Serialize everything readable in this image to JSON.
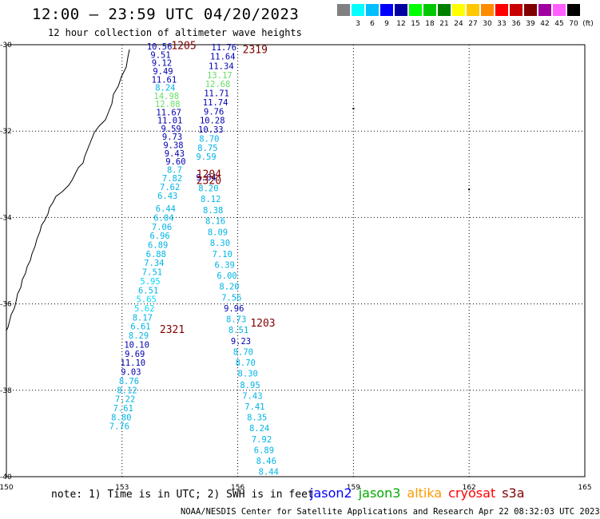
{
  "header": {
    "title": "12:00 – 23:59 UTC 04/20/2023",
    "subtitle": "12 hour collection of altimeter wave heights"
  },
  "legend": {
    "unit": "(ft)",
    "bins": [
      {
        "label": "",
        "color": "#808080"
      },
      {
        "label": "3",
        "color": "#00ffff"
      },
      {
        "label": "6",
        "color": "#00bfff"
      },
      {
        "label": "9",
        "color": "#0000ff"
      },
      {
        "label": "12",
        "color": "#0000a0"
      },
      {
        "label": "15",
        "color": "#00ff00"
      },
      {
        "label": "18",
        "color": "#00c800"
      },
      {
        "label": "21",
        "color": "#008000"
      },
      {
        "label": "24",
        "color": "#ffff00"
      },
      {
        "label": "27",
        "color": "#ffc800"
      },
      {
        "label": "30",
        "color": "#ff8c00"
      },
      {
        "label": "33",
        "color": "#ff0000"
      },
      {
        "label": "36",
        "color": "#c80000"
      },
      {
        "label": "39",
        "color": "#800000"
      },
      {
        "label": "42",
        "color": "#a000a0"
      },
      {
        "label": "45",
        "color": "#ff60ff"
      },
      {
        "label": "70",
        "color": "#000000"
      }
    ]
  },
  "footer": {
    "note": "note: 1) Time is in UTC; 2) SWH is in feet",
    "credit": "NOAA/NESDIS Center for Satellite Applications and Research   Apr 22 08:32:03 UTC 2023",
    "missions": [
      {
        "name": "jason2",
        "color": "#0000ff"
      },
      {
        "name": "jason3",
        "color": "#00aa00"
      },
      {
        "name": "altika",
        "color": "#ff9900"
      },
      {
        "name": "cryosat",
        "color": "#ff0000"
      },
      {
        "name": "s3a",
        "color": "#800000"
      }
    ]
  },
  "chart_data": {
    "type": "scatter",
    "title": "12:00 – 23:59 UTC 04/20/2023",
    "subtitle": "12 hour collection of altimeter wave heights",
    "xlim": [
      150,
      165
    ],
    "ylim": [
      -40,
      -30
    ],
    "x_ticks": [
      "150",
      "153",
      "156",
      "159",
      "162",
      "165"
    ],
    "y_ticks": [
      "-30",
      "-32",
      "-34",
      "-36",
      "-38",
      "-40"
    ],
    "tick_values": {
      "x": [
        150,
        153,
        156,
        159,
        162,
        165
      ],
      "y": [
        -30,
        -32,
        -34,
        -36,
        -38,
        -40
      ]
    },
    "grid": true,
    "colors": {
      "light_blue": "#00b4e6",
      "dark_blue": "#0000b0",
      "light_green": "#66dd66",
      "maroon": "#800000"
    },
    "pass_times": [
      {
        "label": "1205",
        "lon": 154.6,
        "lat": -30.03
      },
      {
        "label": "2319",
        "lon": 156.45,
        "lat": -30.12
      },
      {
        "label": "1204",
        "lon": 155.25,
        "lat": -33.0
      },
      {
        "label": "2320",
        "lon": 155.25,
        "lat": -33.15
      },
      {
        "label": "1203",
        "lon": 156.65,
        "lat": -36.45
      },
      {
        "label": "2321",
        "lon": 154.3,
        "lat": -36.6
      }
    ],
    "series": [
      {
        "name": "pass-1205",
        "points": [
          {
            "lon": 153.97,
            "lat": -30.04,
            "value": "10.56",
            "color": "#0000b0"
          },
          {
            "lon": 154.0,
            "lat": -30.23,
            "value": "9.51",
            "color": "#0000b0"
          },
          {
            "lon": 154.03,
            "lat": -30.42,
            "value": "9.12",
            "color": "#0000b0"
          },
          {
            "lon": 154.06,
            "lat": -30.61,
            "value": "9.49",
            "color": "#0000b0"
          },
          {
            "lon": 154.09,
            "lat": -30.8,
            "value": "11.61",
            "color": "#0000b0"
          },
          {
            "lon": 154.12,
            "lat": -30.99,
            "value": "8.24",
            "color": "#00b4e6"
          },
          {
            "lon": 154.15,
            "lat": -31.18,
            "value": "14.98",
            "color": "#66dd66"
          },
          {
            "lon": 154.18,
            "lat": -31.37,
            "value": "12.08",
            "color": "#66dd66"
          },
          {
            "lon": 154.21,
            "lat": -31.56,
            "value": "11.67",
            "color": "#0000b0"
          },
          {
            "lon": 154.24,
            "lat": -31.75,
            "value": "11.01",
            "color": "#0000b0"
          },
          {
            "lon": 154.27,
            "lat": -31.94,
            "value": "9.59",
            "color": "#0000b0"
          },
          {
            "lon": 154.3,
            "lat": -32.13,
            "value": "9.73",
            "color": "#0000b0"
          },
          {
            "lon": 154.33,
            "lat": -32.32,
            "value": "9.38",
            "color": "#0000b0"
          },
          {
            "lon": 154.36,
            "lat": -32.51,
            "value": "9.43",
            "color": "#0000b0"
          },
          {
            "lon": 154.39,
            "lat": -32.7,
            "value": "9.60",
            "color": "#0000b0"
          }
        ]
      },
      {
        "name": "pass-1204",
        "points": [
          {
            "lon": 154.36,
            "lat": -32.89,
            "value": "8.7",
            "color": "#00b4e6"
          },
          {
            "lon": 154.3,
            "lat": -33.09,
            "value": "7.82",
            "color": "#00b4e6"
          },
          {
            "lon": 154.24,
            "lat": -33.29,
            "value": "7.62",
            "color": "#00b4e6"
          },
          {
            "lon": 154.18,
            "lat": -33.49,
            "value": "6.43",
            "color": "#00b4e6"
          },
          {
            "lon": 154.13,
            "lat": -33.79,
            "value": "6.44",
            "color": "#00b4e6"
          },
          {
            "lon": 154.08,
            "lat": -34.0,
            "value": "6.04",
            "color": "#00b4e6"
          },
          {
            "lon": 154.03,
            "lat": -34.21,
            "value": "7.06",
            "color": "#00b4e6"
          },
          {
            "lon": 153.98,
            "lat": -34.42,
            "value": "6.96",
            "color": "#00b4e6"
          },
          {
            "lon": 153.93,
            "lat": -34.63,
            "value": "6.89",
            "color": "#00b4e6"
          },
          {
            "lon": 153.88,
            "lat": -34.84,
            "value": "6.88",
            "color": "#00b4e6"
          },
          {
            "lon": 153.83,
            "lat": -35.05,
            "value": "7.34",
            "color": "#00b4e6"
          },
          {
            "lon": 153.78,
            "lat": -35.26,
            "value": "7.51",
            "color": "#00b4e6"
          },
          {
            "lon": 153.73,
            "lat": -35.47,
            "value": "5.95",
            "color": "#00d8ff"
          },
          {
            "lon": 153.68,
            "lat": -35.68,
            "value": "6.51",
            "color": "#00b4e6"
          },
          {
            "lon": 153.63,
            "lat": -35.89,
            "value": "5.65",
            "color": "#00d8ff"
          },
          {
            "lon": 153.58,
            "lat": -36.1,
            "value": "5.62",
            "color": "#00d8ff"
          },
          {
            "lon": 153.53,
            "lat": -36.31,
            "value": "8.17",
            "color": "#00b4e6"
          },
          {
            "lon": 153.48,
            "lat": -36.52,
            "value": "6.61",
            "color": "#00b4e6"
          },
          {
            "lon": 153.43,
            "lat": -36.73,
            "value": "8.29",
            "color": "#00b4e6"
          },
          {
            "lon": 153.38,
            "lat": -36.94,
            "value": "10.10",
            "color": "#0000b0"
          },
          {
            "lon": 153.33,
            "lat": -37.15,
            "value": "9.69",
            "color": "#0000b0"
          },
          {
            "lon": 153.28,
            "lat": -37.36,
            "value": "11.10",
            "color": "#0000b0"
          },
          {
            "lon": 153.23,
            "lat": -37.57,
            "value": "9.03",
            "color": "#0000b0"
          },
          {
            "lon": 153.18,
            "lat": -37.78,
            "value": "8.76",
            "color": "#00b4e6"
          },
          {
            "lon": 153.13,
            "lat": -37.99,
            "value": "8.12",
            "color": "#00b4e6"
          },
          {
            "lon": 153.08,
            "lat": -38.2,
            "value": "7.22",
            "color": "#00b4e6"
          },
          {
            "lon": 153.03,
            "lat": -38.41,
            "value": "7.61",
            "color": "#00b4e6"
          },
          {
            "lon": 152.98,
            "lat": -38.62,
            "value": "8.80",
            "color": "#00b4e6"
          },
          {
            "lon": 152.93,
            "lat": -38.83,
            "value": "7.76",
            "color": "#00b4e6"
          }
        ]
      },
      {
        "name": "pass-2319",
        "points": [
          {
            "lon": 155.64,
            "lat": -30.06,
            "value": "11.76",
            "color": "#0000b0"
          },
          {
            "lon": 155.61,
            "lat": -30.27,
            "value": "11.64",
            "color": "#0000b0"
          },
          {
            "lon": 155.57,
            "lat": -30.49,
            "value": "11.34",
            "color": "#0000b0"
          },
          {
            "lon": 155.53,
            "lat": -30.7,
            "value": "13.17",
            "color": "#66dd66"
          },
          {
            "lon": 155.48,
            "lat": -30.91,
            "value": "12.68",
            "color": "#66dd66"
          },
          {
            "lon": 155.45,
            "lat": -31.12,
            "value": "11.71",
            "color": "#0000b0"
          },
          {
            "lon": 155.42,
            "lat": -31.33,
            "value": "11.74",
            "color": "#0000b0"
          },
          {
            "lon": 155.38,
            "lat": -31.54,
            "value": "9.76",
            "color": "#0000b0"
          },
          {
            "lon": 155.34,
            "lat": -31.75,
            "value": "10.28",
            "color": "#0000b0"
          },
          {
            "lon": 155.3,
            "lat": -31.96,
            "value": "10.33",
            "color": "#0000b0"
          },
          {
            "lon": 155.26,
            "lat": -32.17,
            "value": "8.70",
            "color": "#00b4e6"
          },
          {
            "lon": 155.22,
            "lat": -32.38,
            "value": "8.75",
            "color": "#00b4e6"
          },
          {
            "lon": 155.18,
            "lat": -32.59,
            "value": "9.59",
            "color": "#00b4e6"
          }
        ]
      },
      {
        "name": "pass-2320",
        "points": [
          {
            "lon": 155.18,
            "lat": -33.07,
            "value": "9.64",
            "color": "#0000b0"
          },
          {
            "lon": 155.24,
            "lat": -33.32,
            "value": "8.20",
            "color": "#00b4e6"
          },
          {
            "lon": 155.3,
            "lat": -33.57,
            "value": "8.12",
            "color": "#00b4e6"
          },
          {
            "lon": 155.36,
            "lat": -33.83,
            "value": "8.38",
            "color": "#00b4e6"
          },
          {
            "lon": 155.42,
            "lat": -34.08,
            "value": "8.16",
            "color": "#00b4e6"
          },
          {
            "lon": 155.48,
            "lat": -34.33,
            "value": "8.09",
            "color": "#00b4e6"
          },
          {
            "lon": 155.54,
            "lat": -34.58,
            "value": "8.30",
            "color": "#00b4e6"
          },
          {
            "lon": 155.6,
            "lat": -34.84,
            "value": "7.10",
            "color": "#00b4e6"
          },
          {
            "lon": 155.66,
            "lat": -35.09,
            "value": "6.39",
            "color": "#00b4e6"
          },
          {
            "lon": 155.72,
            "lat": -35.34,
            "value": "6.00",
            "color": "#00b4e6"
          },
          {
            "lon": 155.78,
            "lat": -35.59,
            "value": "8.20",
            "color": "#00b4e6"
          },
          {
            "lon": 155.84,
            "lat": -35.85,
            "value": "7.56",
            "color": "#00b4e6"
          },
          {
            "lon": 155.9,
            "lat": -36.1,
            "value": "9.96",
            "color": "#0000b0"
          },
          {
            "lon": 155.96,
            "lat": -36.35,
            "value": "8.73",
            "color": "#00b4e6"
          },
          {
            "lon": 156.02,
            "lat": -36.6,
            "value": "8.51",
            "color": "#00b4e6"
          },
          {
            "lon": 156.08,
            "lat": -36.86,
            "value": "9.23",
            "color": "#0000b0"
          },
          {
            "lon": 156.14,
            "lat": -37.11,
            "value": "8.70",
            "color": "#00b4e6"
          },
          {
            "lon": 156.2,
            "lat": -37.36,
            "value": "8.70",
            "color": "#00b4e6"
          },
          {
            "lon": 156.26,
            "lat": -37.61,
            "value": "8.30",
            "color": "#00b4e6"
          },
          {
            "lon": 156.32,
            "lat": -37.87,
            "value": "8.95",
            "color": "#00b4e6"
          },
          {
            "lon": 156.38,
            "lat": -38.12,
            "value": "7.43",
            "color": "#00b4e6"
          },
          {
            "lon": 156.44,
            "lat": -38.37,
            "value": "7.41",
            "color": "#00b4e6"
          },
          {
            "lon": 156.5,
            "lat": -38.62,
            "value": "8.35",
            "color": "#00b4e6"
          },
          {
            "lon": 156.56,
            "lat": -38.87,
            "value": "8.24",
            "color": "#00b4e6"
          },
          {
            "lon": 156.62,
            "lat": -39.13,
            "value": "7.92",
            "color": "#00b4e6"
          },
          {
            "lon": 156.68,
            "lat": -39.38,
            "value": "6.89",
            "color": "#00b4e6"
          },
          {
            "lon": 156.74,
            "lat": -39.63,
            "value": "8.46",
            "color": "#00b4e6"
          },
          {
            "lon": 156.8,
            "lat": -39.88,
            "value": "8.44",
            "color": "#00b4e6"
          }
        ]
      }
    ]
  }
}
